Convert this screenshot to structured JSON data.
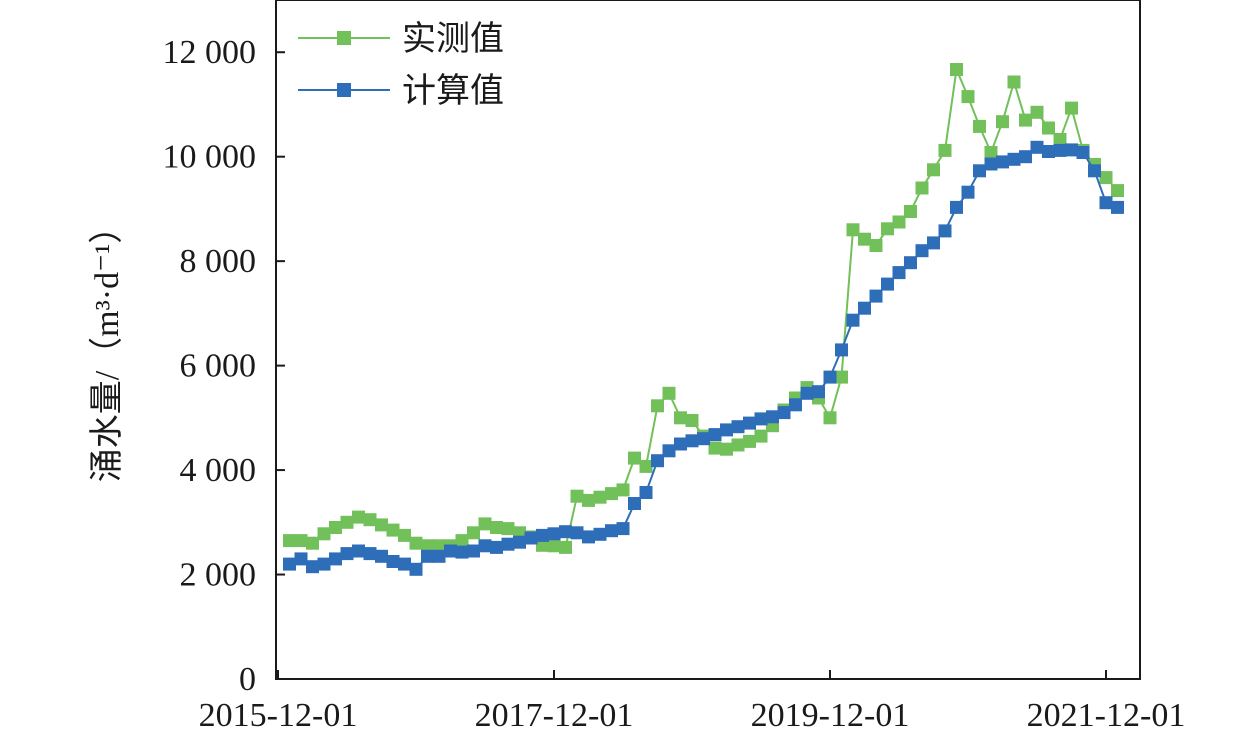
{
  "chart_data": {
    "type": "line",
    "title": "",
    "xlabel": "",
    "ylabel": "涌水量/（m³·d⁻¹）",
    "x_start": "2015-12",
    "x_tick_labels": [
      "2015-12-01",
      "2017-12-01",
      "2019-12-01",
      "2021-12-01"
    ],
    "xlim": [
      "2015-12-01",
      "2022-03-01"
    ],
    "ylim": [
      0,
      13000
    ],
    "y_ticks": [
      0,
      2000,
      4000,
      6000,
      8000,
      10000,
      12000
    ],
    "y_tick_labels": [
      "0",
      "2 000",
      "4 000",
      "6 000",
      "8 000",
      "10 000",
      "12 000"
    ],
    "grid": false,
    "legend_position": "top-left",
    "series": [
      {
        "name": "实测值",
        "color": "#72c05a",
        "values": [
          2650,
          2650,
          2600,
          2780,
          2900,
          3000,
          3100,
          3050,
          2950,
          2850,
          2750,
          2600,
          2550,
          2550,
          2550,
          2650,
          2800,
          2970,
          2900,
          2880,
          2800,
          2720,
          2560,
          2550,
          2520,
          3500,
          3420,
          3480,
          3550,
          3620,
          4230,
          4070,
          5230,
          5470,
          5000,
          4950,
          4650,
          4420,
          4400,
          4480,
          4550,
          4650,
          4850,
          5150,
          5380,
          5580,
          5380,
          5000,
          5780,
          8600,
          8420,
          8300,
          8620,
          8750,
          8950,
          9400,
          9750,
          10120,
          11670,
          11150,
          10580,
          10080,
          10670,
          11430,
          10700,
          10850,
          10550,
          10330,
          10930,
          10120,
          9850,
          9600,
          9350
        ]
      },
      {
        "name": "计算值",
        "color": "#2e6db8",
        "values": [
          2200,
          2300,
          2150,
          2200,
          2300,
          2400,
          2450,
          2400,
          2350,
          2250,
          2200,
          2100,
          2350,
          2350,
          2450,
          2430,
          2450,
          2550,
          2520,
          2580,
          2620,
          2700,
          2750,
          2780,
          2820,
          2800,
          2720,
          2770,
          2840,
          2880,
          3360,
          3570,
          4180,
          4370,
          4500,
          4560,
          4600,
          4680,
          4770,
          4830,
          4900,
          4980,
          5020,
          5100,
          5250,
          5470,
          5500,
          5780,
          6300,
          6870,
          7100,
          7330,
          7560,
          7780,
          7970,
          8200,
          8350,
          8580,
          9030,
          9320,
          9730,
          9860,
          9900,
          9950,
          10000,
          10180,
          10100,
          10120,
          10130,
          10080,
          9730,
          9120,
          9030
        ]
      }
    ]
  }
}
